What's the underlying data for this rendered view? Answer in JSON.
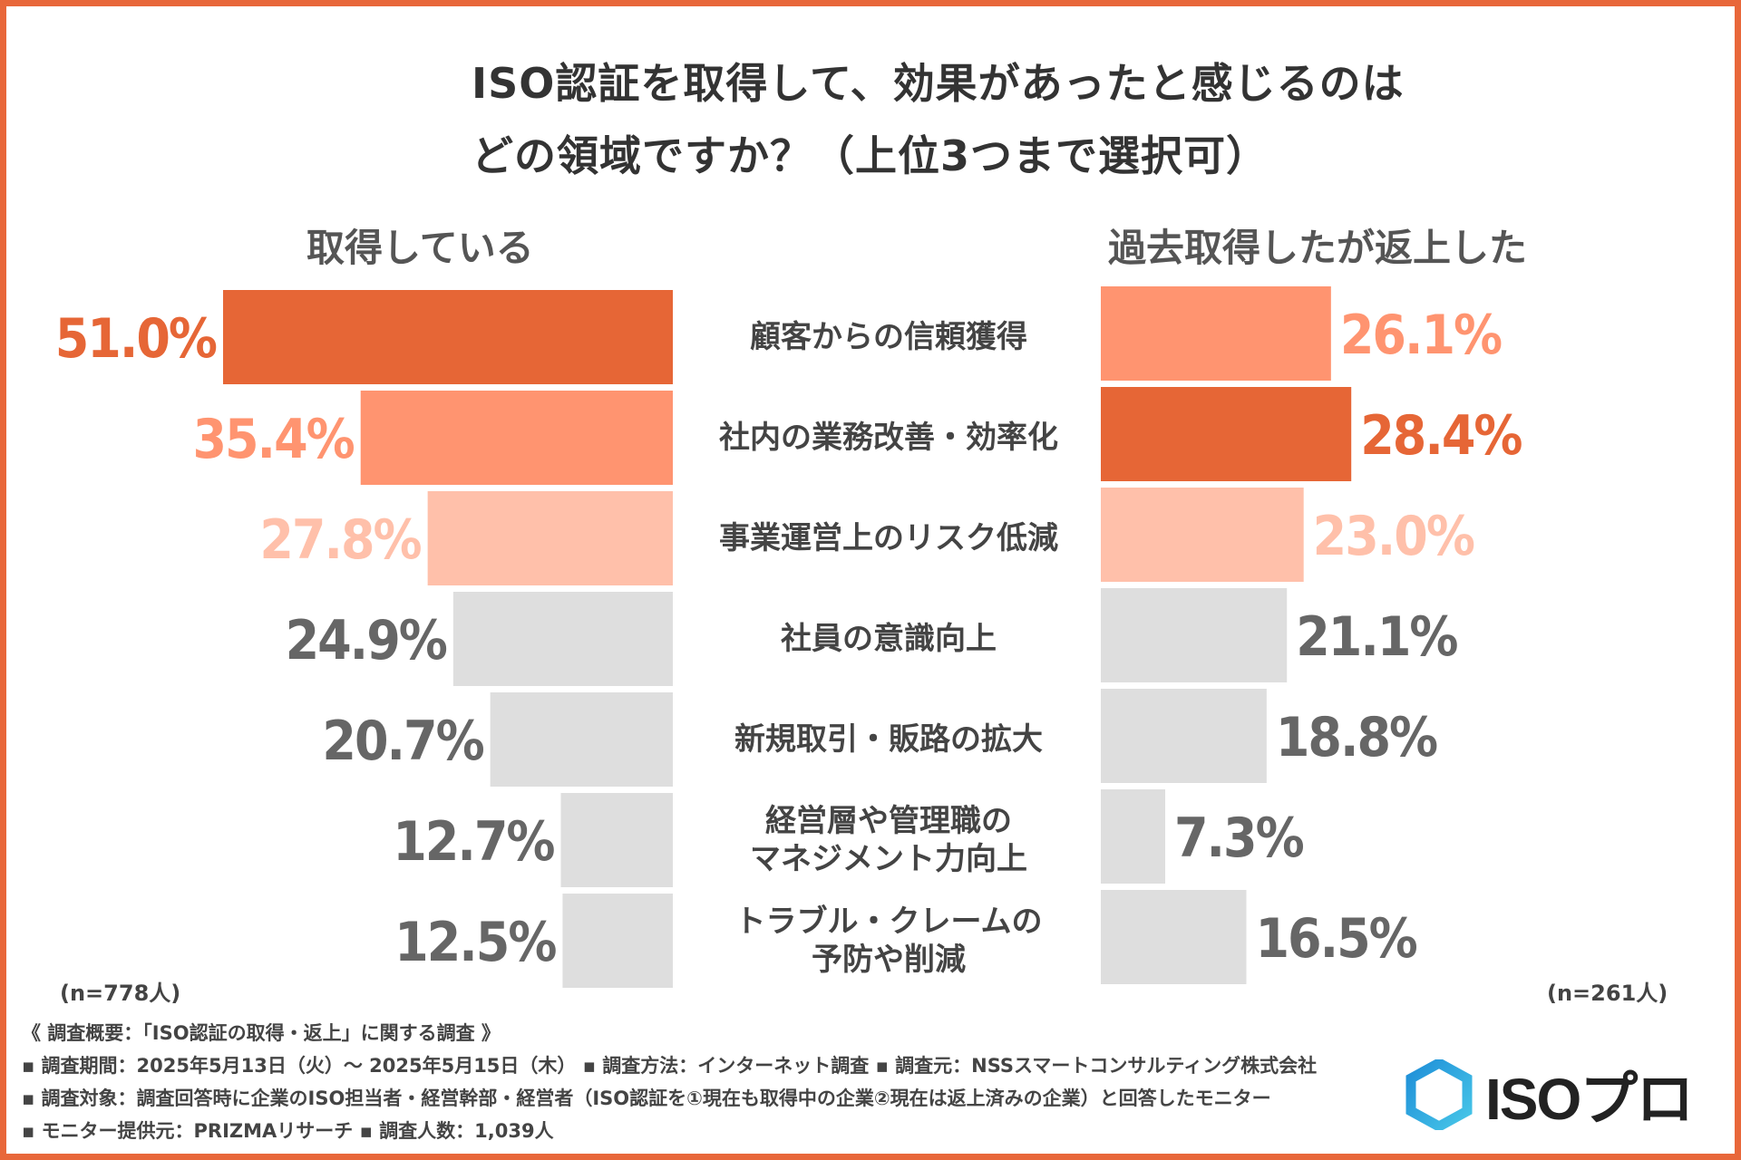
{
  "title": {
    "line1": "ISO認証を取得して、効果があったと感じるのは",
    "line2": "どの領域ですか？（上位3つまで選択可）"
  },
  "colors": {
    "border": "#e8673a",
    "highlight1": "#e66636",
    "highlight2": "#ff9470",
    "highlight3": "#ffc0aa",
    "neutral_bar": "#dedede",
    "neutral_text": "#666666"
  },
  "chart_data": {
    "type": "bar",
    "orientation": "horizontal-butterfly",
    "categories": [
      "顧客からの信頼獲得",
      "社内の業務改善・効率化",
      "事業運営上のリスク低減",
      "社員の意識向上",
      "新規取引・販路の拡大",
      "経営層や管理職のマネジメント力向上",
      "トラブル・クレームの予防や削減"
    ],
    "category_lines": [
      [
        "顧客からの信頼獲得"
      ],
      [
        "社内の業務改善・効率化"
      ],
      [
        "事業運営上のリスク低減"
      ],
      [
        "社員の意識向上"
      ],
      [
        "新規取引・販路の拡大"
      ],
      [
        "経営層や管理職の",
        "マネジメント力向上"
      ],
      [
        "トラブル・クレームの",
        "予防や削減"
      ]
    ],
    "series": [
      {
        "name": "取得している",
        "n": "(n=778人)",
        "values": [
          51.0,
          35.4,
          27.8,
          24.9,
          20.7,
          12.7,
          12.5
        ],
        "labels": [
          "51.0%",
          "35.4%",
          "27.8%",
          "24.9%",
          "20.7%",
          "12.7%",
          "12.5%"
        ]
      },
      {
        "name": "過去取得したが返上した",
        "n": "(n=261人)",
        "values": [
          26.1,
          28.4,
          23.0,
          21.1,
          18.8,
          7.3,
          16.5
        ],
        "labels": [
          "26.1%",
          "28.4%",
          "23.0%",
          "21.1%",
          "18.8%",
          "7.3%",
          "16.5%"
        ]
      }
    ],
    "unit": "%",
    "xlim": [
      0,
      51.0
    ]
  },
  "footer": {
    "line1": "《 調査概要：「ISO認証の取得・返上」に関する調査 》",
    "line2": "▪ 調査期間：2025年5月13日（火）～ 2025年5月15日（木）  ▪ 調査方法：インターネット調査 ▪ 調査元：NSSスマートコンサルティング株式会社",
    "line3": "▪ 調査対象：調査回答時に企業のISO担当者・経営幹部・経営者（ISO認証を①現在も取得中の企業②現在は返上済みの企業）と回答したモニター",
    "line4": "▪ モニター提供元：PRIZMAリサーチ          ▪ 調査人数：1,039人"
  },
  "logo": {
    "text": "ISOプロ"
  }
}
